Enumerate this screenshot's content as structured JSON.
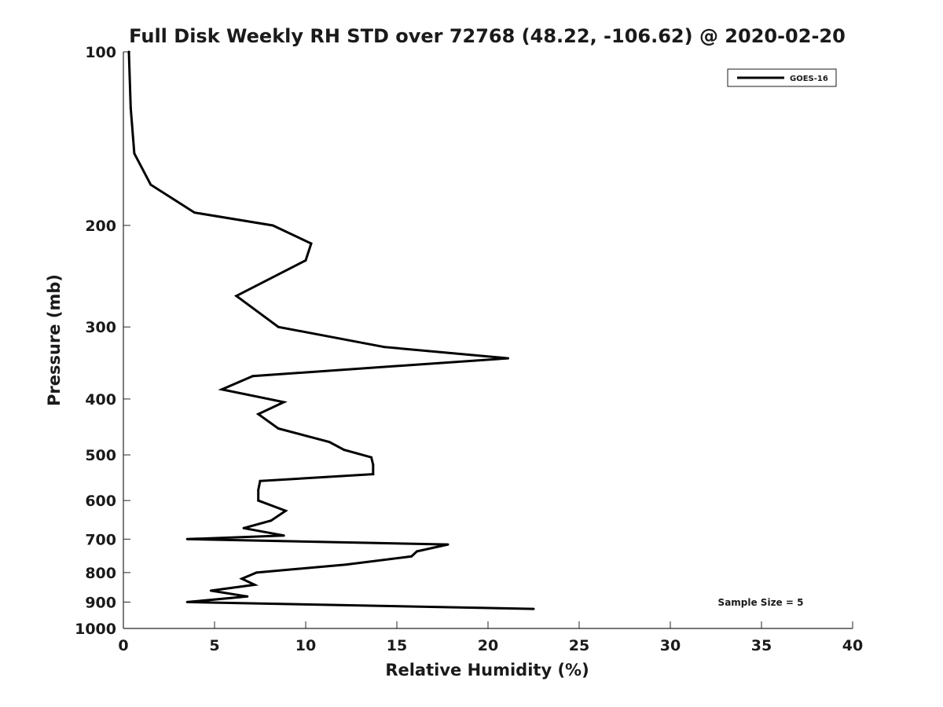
{
  "chart_data": {
    "type": "line",
    "title": "Full Disk Weekly RH STD over 72768 (48.22, -106.62) @ 2020-02-20",
    "xlabel": "Relative Humidity (%)",
    "ylabel": "Pressure (mb)",
    "xlim": [
      0,
      40
    ],
    "ylim": [
      100,
      1000
    ],
    "y_scale": "log",
    "y_reversed": true,
    "x_ticks": [
      0,
      5,
      10,
      15,
      20,
      25,
      30,
      35,
      40
    ],
    "y_ticks": [
      100,
      200,
      300,
      400,
      500,
      600,
      700,
      800,
      900,
      1000
    ],
    "grid": false,
    "legend_position": "top-right",
    "series": [
      {
        "name": "GOES-16",
        "color": "#000000",
        "points": [
          [
            0.3,
            100
          ],
          [
            0.4,
            125
          ],
          [
            0.6,
            150
          ],
          [
            1.5,
            170
          ],
          [
            3.9,
            190
          ],
          [
            8.2,
            200
          ],
          [
            10.3,
            215
          ],
          [
            10.0,
            230
          ],
          [
            6.2,
            265
          ],
          [
            8.5,
            300
          ],
          [
            14.3,
            325
          ],
          [
            21.1,
            340
          ],
          [
            7.1,
            365
          ],
          [
            5.4,
            385
          ],
          [
            8.8,
            405
          ],
          [
            7.4,
            425
          ],
          [
            8.5,
            450
          ],
          [
            11.3,
            475
          ],
          [
            12.1,
            490
          ],
          [
            13.6,
            505
          ],
          [
            13.7,
            520
          ],
          [
            13.7,
            540
          ],
          [
            7.5,
            555
          ],
          [
            7.4,
            575
          ],
          [
            7.4,
            600
          ],
          [
            8.9,
            625
          ],
          [
            8.1,
            650
          ],
          [
            6.6,
            670
          ],
          [
            8.8,
            690
          ],
          [
            3.5,
            700
          ],
          [
            17.8,
            715
          ],
          [
            16.1,
            735
          ],
          [
            15.8,
            750
          ],
          [
            12.2,
            775
          ],
          [
            7.3,
            800
          ],
          [
            6.5,
            820
          ],
          [
            7.2,
            840
          ],
          [
            4.8,
            860
          ],
          [
            6.8,
            880
          ],
          [
            3.5,
            900
          ],
          [
            22.5,
            925
          ]
        ]
      }
    ],
    "annotations": [
      "Sample Size = 5"
    ]
  }
}
